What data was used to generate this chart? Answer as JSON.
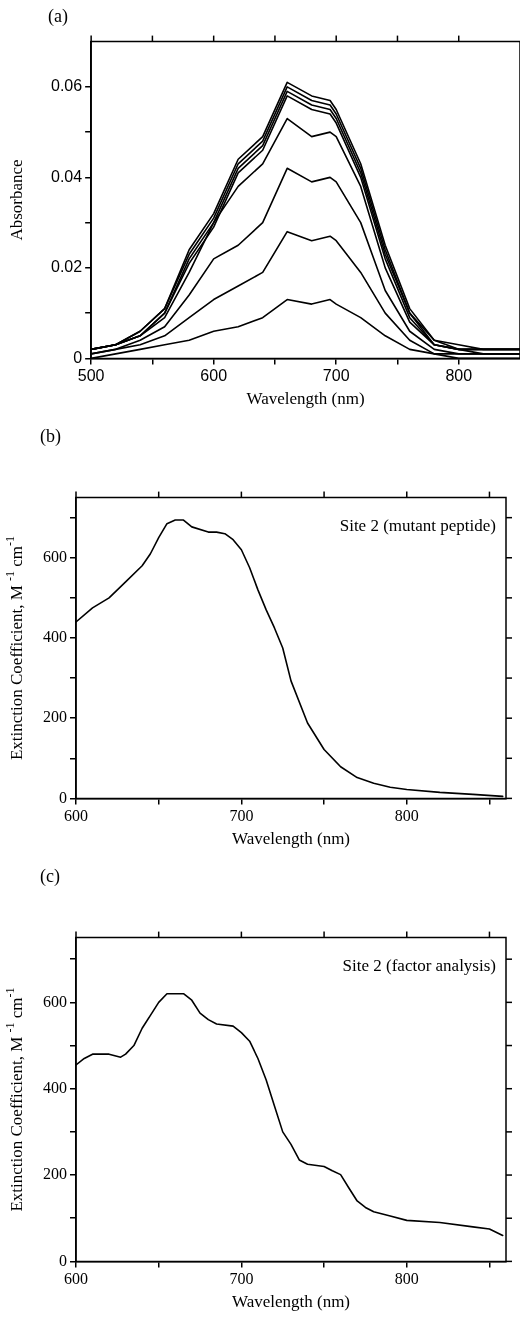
{
  "chart_data": [
    {
      "type": "line",
      "title": "(a)",
      "xlabel": "Wavelength (nm)",
      "ylabel": "Absorbance",
      "x": [
        500,
        520,
        540,
        560,
        580,
        600,
        620,
        640,
        660,
        680,
        695,
        700,
        720,
        740,
        760,
        780,
        800,
        820,
        850
      ],
      "series": [
        {
          "color": "#000000",
          "values": [
            0.002,
            0.003,
            0.006,
            0.011,
            0.024,
            0.032,
            0.044,
            0.049,
            0.061,
            0.058,
            0.057,
            0.055,
            0.043,
            0.025,
            0.011,
            0.004,
            0.003,
            0.002,
            0.002
          ]
        },
        {
          "color": "#000000",
          "values": [
            0.002,
            0.003,
            0.006,
            0.011,
            0.023,
            0.031,
            0.043,
            0.048,
            0.06,
            0.057,
            0.056,
            0.054,
            0.042,
            0.024,
            0.01,
            0.004,
            0.002,
            0.002,
            0.002
          ]
        },
        {
          "color": "#000000",
          "values": [
            0.002,
            0.003,
            0.005,
            0.01,
            0.022,
            0.03,
            0.042,
            0.047,
            0.059,
            0.056,
            0.055,
            0.053,
            0.041,
            0.023,
            0.01,
            0.003,
            0.002,
            0.002,
            0.002
          ]
        },
        {
          "color": "#000000",
          "values": [
            0.002,
            0.003,
            0.005,
            0.01,
            0.021,
            0.029,
            0.041,
            0.046,
            0.058,
            0.055,
            0.054,
            0.052,
            0.04,
            0.022,
            0.009,
            0.003,
            0.002,
            0.002,
            0.002
          ]
        },
        {
          "color": "#000000",
          "values": [
            0.002,
            0.003,
            0.005,
            0.009,
            0.019,
            0.03,
            0.038,
            0.043,
            0.053,
            0.049,
            0.05,
            0.049,
            0.038,
            0.02,
            0.008,
            0.003,
            0.002,
            0.001,
            0.001
          ]
        },
        {
          "color": "#000000",
          "values": [
            0.001,
            0.002,
            0.004,
            0.007,
            0.014,
            0.022,
            0.025,
            0.03,
            0.042,
            0.039,
            0.04,
            0.039,
            0.03,
            0.015,
            0.006,
            0.002,
            0.001,
            0.001,
            0.001
          ]
        },
        {
          "color": "#000000",
          "values": [
            0.001,
            0.002,
            0.003,
            0.005,
            0.009,
            0.013,
            0.016,
            0.019,
            0.028,
            0.026,
            0.027,
            0.026,
            0.019,
            0.01,
            0.004,
            0.001,
            0.001,
            0.001,
            0.001
          ]
        },
        {
          "color": "#000000",
          "values": [
            0.0,
            0.001,
            0.002,
            0.003,
            0.004,
            0.006,
            0.007,
            0.009,
            0.013,
            0.012,
            0.013,
            0.012,
            0.009,
            0.005,
            0.002,
            0.001,
            0.0,
            0.0,
            0.0
          ]
        }
      ],
      "xlim": [
        500,
        850
      ],
      "xticks": [
        500,
        {
          "value": 550,
          "label": null
        },
        600,
        {
          "value": 650,
          "label": null
        },
        700,
        {
          "value": 750,
          "label": null
        },
        800
      ],
      "ylim": [
        0,
        0.07
      ],
      "yticks": [
        {
          "value": 0,
          "label": "0"
        },
        {
          "value": 0.01,
          "label": null
        },
        {
          "value": 0.02,
          "label": "0.02"
        },
        {
          "value": 0.03,
          "label": null
        },
        {
          "value": 0.04,
          "label": "0.04"
        },
        {
          "value": 0.05,
          "label": null
        },
        {
          "value": 0.06,
          "label": "0.06"
        }
      ],
      "grid": false,
      "legend": false,
      "marker": "none",
      "line_style": "solid"
    },
    {
      "type": "line",
      "title": "(b)",
      "xlabel": "Wavelength (nm)",
      "ylabel": "Extinction Coefficient, M $^{-1}$ cm$^{-1}$",
      "annotations": [
        "Site 2 (mutant peptide)"
      ],
      "x": [
        600,
        610,
        620,
        630,
        640,
        645,
        650,
        655,
        660,
        665,
        670,
        680,
        685,
        690,
        695,
        700,
        705,
        710,
        715,
        720,
        725,
        730,
        740,
        750,
        760,
        770,
        780,
        790,
        800,
        820,
        840,
        858
      ],
      "series": [
        {
          "color": "#000000",
          "values": [
            440,
            475,
            500,
            540,
            580,
            610,
            650,
            685,
            694,
            694,
            677,
            664,
            664,
            660,
            645,
            620,
            575,
            520,
            470,
            425,
            375,
            293,
            188,
            122,
            79,
            52,
            38,
            28,
            22,
            15,
            10,
            5
          ]
        }
      ],
      "xlim": [
        600,
        860
      ],
      "xticks": [
        600,
        {
          "value": 650,
          "label": null
        },
        700,
        {
          "value": 750,
          "label": null
        },
        800,
        {
          "value": 850,
          "label": null
        }
      ],
      "ylim": [
        0,
        750
      ],
      "yticks": [
        0,
        {
          "value": 100,
          "label": null
        },
        200,
        {
          "value": 300,
          "label": null
        },
        400,
        {
          "value": 500,
          "label": null
        },
        600,
        {
          "value": 700,
          "label": null
        }
      ],
      "grid": false,
      "legend": false,
      "marker": "none",
      "line_style": "solid"
    },
    {
      "type": "line",
      "title": "(c)",
      "xlabel": "Wavelength (nm)",
      "ylabel": "Extinction Coefficient, M $^{-1}$ cm$^{-1}$",
      "annotations": [
        "Site 2 (factor analysis)"
      ],
      "x": [
        600,
        605,
        610,
        620,
        627,
        630,
        635,
        640,
        645,
        650,
        655,
        665,
        670,
        675,
        680,
        685,
        695,
        700,
        705,
        710,
        715,
        720,
        725,
        730,
        735,
        740,
        750,
        755,
        760,
        765,
        770,
        775,
        780,
        790,
        800,
        820,
        840,
        850,
        858
      ],
      "series": [
        {
          "color": "#000000",
          "values": [
            455,
            470,
            480,
            480,
            473,
            480,
            500,
            540,
            570,
            600,
            620,
            620,
            605,
            575,
            560,
            550,
            545,
            530,
            510,
            470,
            420,
            360,
            300,
            271,
            235,
            225,
            220,
            210,
            201,
            170,
            140,
            125,
            115,
            105,
            95,
            90,
            80,
            75,
            60
          ]
        }
      ],
      "xlim": [
        600,
        860
      ],
      "xticks": [
        600,
        {
          "value": 650,
          "label": null
        },
        700,
        {
          "value": 750,
          "label": null
        },
        800,
        {
          "value": 850,
          "label": null
        }
      ],
      "ylim": [
        0,
        750
      ],
      "yticks": [
        0,
        {
          "value": 100,
          "label": null
        },
        200,
        {
          "value": 300,
          "label": null
        },
        400,
        {
          "value": 500,
          "label": null
        },
        600,
        {
          "value": 700,
          "label": null
        }
      ],
      "grid": false,
      "legend": false,
      "marker": "none",
      "line_style": "solid"
    }
  ]
}
